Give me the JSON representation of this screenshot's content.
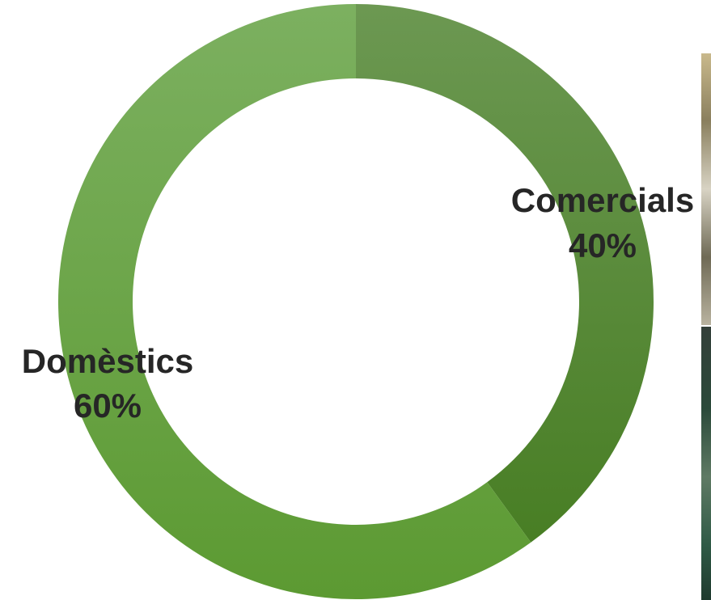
{
  "chart_data": {
    "type": "pie",
    "title": "",
    "donut": true,
    "slices": [
      {
        "label": "Comercials",
        "value": 40,
        "value_label": "40%",
        "color": "#5e8f3c"
      },
      {
        "label": "Domèstics",
        "value": 60,
        "value_label": "60%",
        "color": "#6ea84a"
      }
    ]
  }
}
